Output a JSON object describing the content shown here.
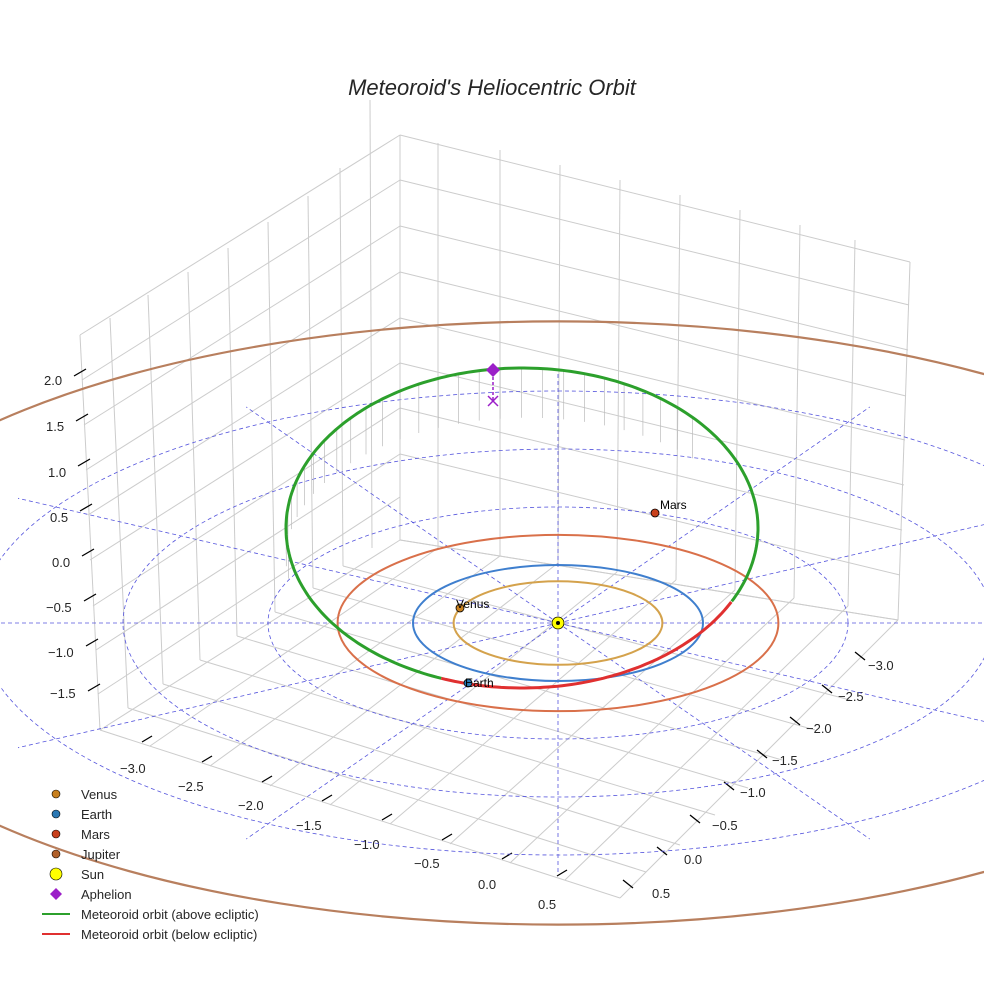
{
  "chart_data": {
    "type": "3d-line",
    "title": "Meteoroid's Heliocentric Orbit",
    "xlabel": "",
    "ylabel": "",
    "zlabel": "",
    "x_ticks": [
      "−3.0",
      "−2.5",
      "−2.0",
      "−1.5",
      "−1.0",
      "−0.5",
      "0.0",
      "0.5"
    ],
    "y_ticks": [
      "−3.0",
      "−2.5",
      "−2.0",
      "−1.5",
      "−1.0",
      "−0.5",
      "0.0",
      "0.5"
    ],
    "z_ticks": [
      "2.0",
      "1.5",
      "1.0",
      "0.5",
      "0.0",
      "−0.5",
      "−1.0",
      "−1.5"
    ],
    "grid": true,
    "legend_position": "bottom-left",
    "bodies": [
      {
        "name": "Venus",
        "orbit_radius_au": 0.72,
        "color": "#d4a24c",
        "marker": "#c8801e"
      },
      {
        "name": "Earth",
        "orbit_radius_au": 1.0,
        "color": "#3f7fce",
        "marker": "#2a78b4"
      },
      {
        "name": "Mars",
        "orbit_radius_au": 1.52,
        "color": "#d9704a",
        "marker": "#c8401c"
      },
      {
        "name": "Jupiter",
        "orbit_radius_au": 5.2,
        "color": "#b87f5e",
        "marker": "#b0602a"
      },
      {
        "name": "Sun",
        "orbit_radius_au": 0,
        "color": "#ffff00",
        "marker": "#ffff00"
      }
    ],
    "aphelion": {
      "label": "Aphelion",
      "color": "#9b1fc8"
    },
    "meteoroid": {
      "above_label": "Meteoroid orbit (above ecliptic)",
      "below_label": "Meteoroid orbit (below ecliptic)",
      "above_color": "#2ca02c",
      "below_color": "#e03030"
    },
    "ecliptic_grid_radii_au": [
      1,
      2,
      3,
      4
    ],
    "ecliptic_grid_color": "#5555dd"
  },
  "planet_labels": {
    "venus": "Venus",
    "earth": "Earth",
    "mars": "Mars"
  },
  "legend": [
    {
      "label": "Venus",
      "color": "#c8801e",
      "kind": "dot"
    },
    {
      "label": "Earth",
      "color": "#2a78b4",
      "kind": "dot"
    },
    {
      "label": "Mars",
      "color": "#c8401c",
      "kind": "dot"
    },
    {
      "label": "Jupiter",
      "color": "#b0602a",
      "kind": "dot"
    },
    {
      "label": "Sun",
      "color": "#ffff00",
      "kind": "sun"
    },
    {
      "label": "Aphelion",
      "color": "#9b1fc8",
      "kind": "diamond"
    },
    {
      "label": "Meteoroid orbit (above ecliptic)",
      "color": "#2ca02c",
      "kind": "line"
    },
    {
      "label": "Meteoroid orbit (below ecliptic)",
      "color": "#e03030",
      "kind": "line"
    }
  ]
}
